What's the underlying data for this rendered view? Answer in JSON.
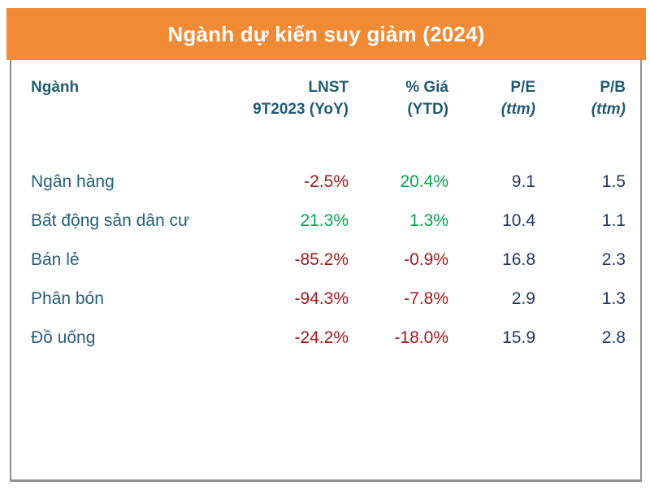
{
  "title": "Ngành dự kiến suy giảm (2024)",
  "colors": {
    "accent_orange": "#F08A34",
    "header_teal": "#1F5C73",
    "label_teal": "#25607A",
    "negative_red": "#A01B1E",
    "positive_green": "#00A651",
    "value_navy": "#1F3864",
    "border_gray": "#8F8F8F"
  },
  "chart_data": {
    "type": "table",
    "title": "Ngành dự kiến suy giảm (2024)",
    "columns": [
      {
        "line1": "Ngành",
        "line2": ""
      },
      {
        "line1": "LNST",
        "line2": "9T2023 (YoY)"
      },
      {
        "line1": "% Giá",
        "line2": "(YTD)"
      },
      {
        "line1": "P/E",
        "line2": "(ttm)"
      },
      {
        "line1": "P/B",
        "line2": "(ttm)"
      }
    ],
    "rows": [
      {
        "nganh": "Ngân hàng",
        "lnst": "-2.5%",
        "lnst_tone": "negative",
        "gia": "20.4%",
        "gia_tone": "positive",
        "pe": "9.1",
        "pb": "1.5"
      },
      {
        "nganh": "Bất động sản dân cư",
        "lnst": "21.3%",
        "lnst_tone": "positive",
        "gia": "1.3%",
        "gia_tone": "positive",
        "pe": "10.4",
        "pb": "1.1"
      },
      {
        "nganh": "Bán lẻ",
        "lnst": "-85.2%",
        "lnst_tone": "negative",
        "gia": "-0.9%",
        "gia_tone": "negative",
        "pe": "16.8",
        "pb": "2.3"
      },
      {
        "nganh": "Phân bón",
        "lnst": "-94.3%",
        "lnst_tone": "negative",
        "gia": "-7.8%",
        "gia_tone": "negative",
        "pe": "2.9",
        "pb": "1.3"
      },
      {
        "nganh": "Đồ uống",
        "lnst": "-24.2%",
        "lnst_tone": "negative",
        "gia": "-18.0%",
        "gia_tone": "negative",
        "pe": "15.9",
        "pb": "2.8"
      }
    ]
  }
}
